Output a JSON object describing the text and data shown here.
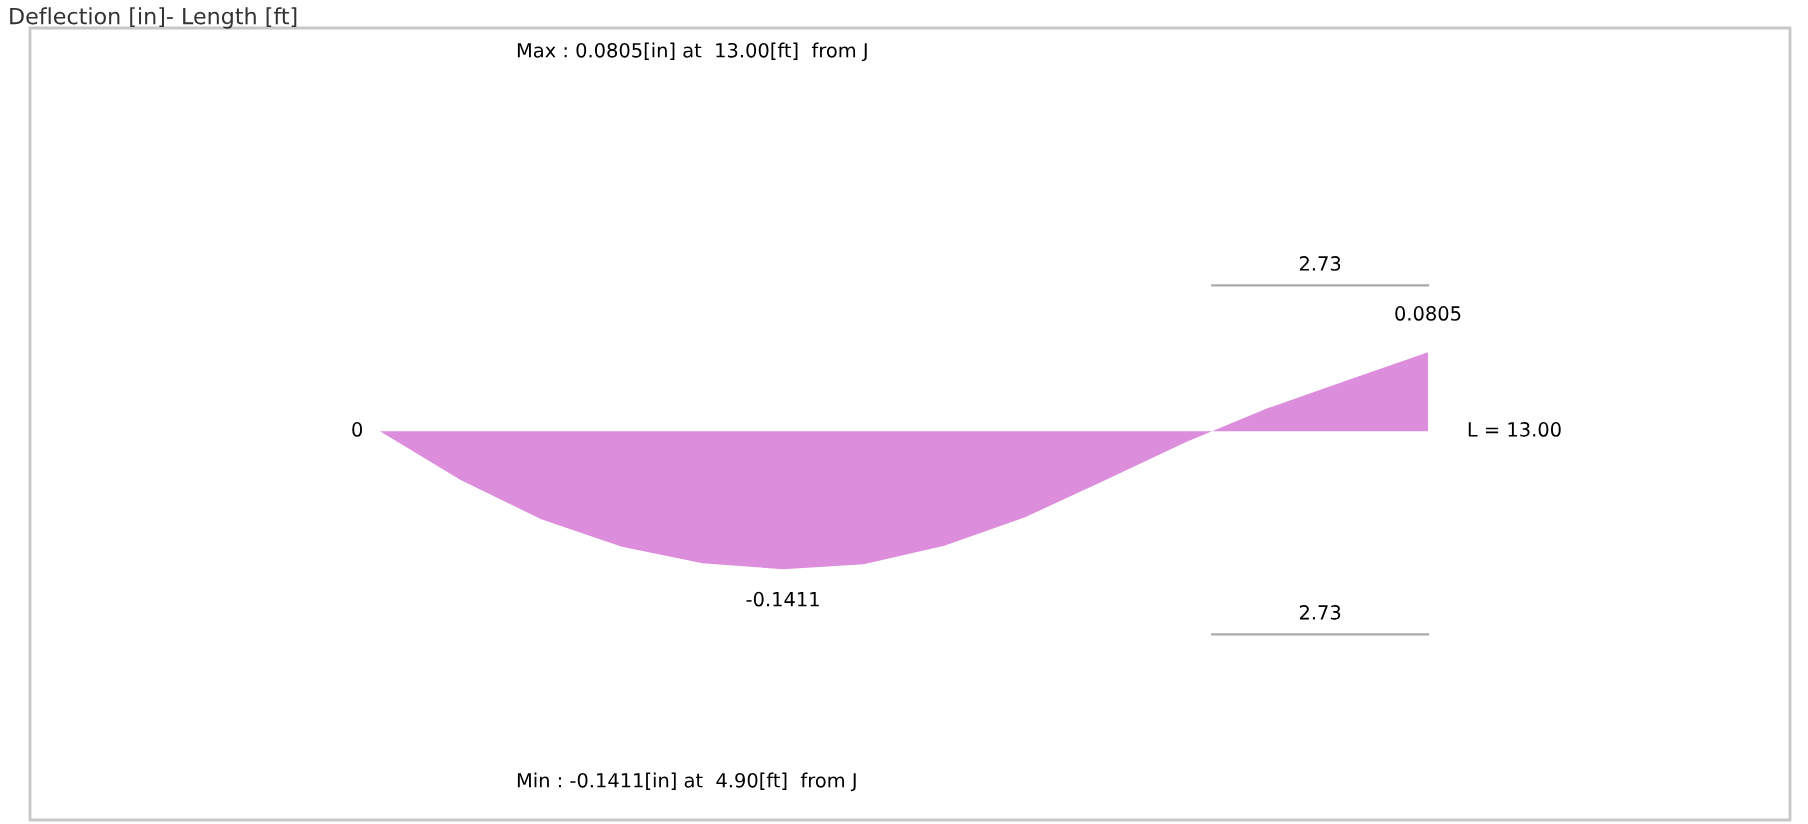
{
  "chart_data": {
    "type": "area",
    "title": "Deflection [in]- Length [ft]",
    "categories": [
      null,
      null,
      null,
      null,
      null,
      null,
      null,
      null,
      null,
      null,
      null,
      null,
      null,
      null
    ],
    "series": [
      {
        "color": "#dc8ddc",
        "values": [
          0,
          -0.05,
          -0.09,
          -0.118,
          -0.135,
          -0.1411,
          -0.136,
          -0.117,
          -0.088,
          -0.05,
          -0.011,
          0.023,
          0.052,
          0.0805
        ],
        "value_labels": [
          "0",
          null,
          null,
          null,
          null,
          "-0.1411",
          null,
          null,
          null,
          null,
          null,
          null,
          null,
          "0.0805"
        ]
      }
    ],
    "annotations": [
      "Max : 0.0805[in] at  13.00[ft]  from J",
      "Min : -0.1411[in] at  4.90[ft]  from J",
      "2.73",
      "2.73",
      "L = 13.00"
    ],
    "legend": false
  }
}
